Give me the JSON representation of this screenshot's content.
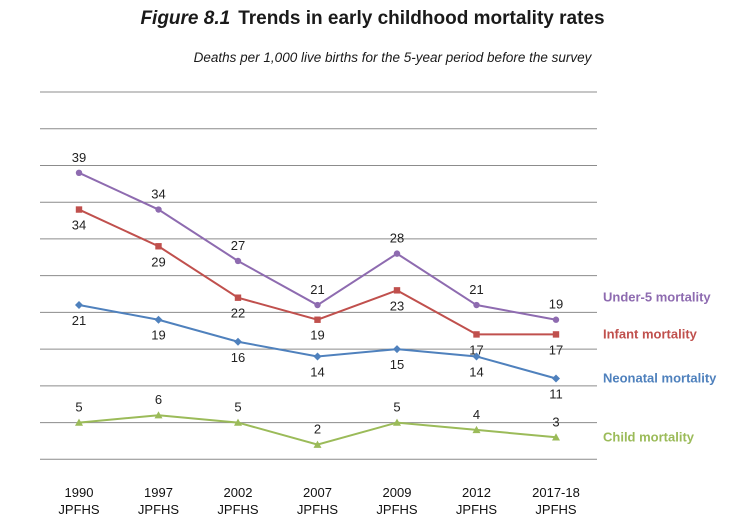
{
  "figure": {
    "number": "Figure 8.1",
    "title": "Trends in early childhood mortality rates",
    "subtitle": "Deaths per 1,000 live births for the 5-year period before the survey"
  },
  "chart_data": {
    "type": "line",
    "categories": [
      [
        "1990",
        "JPFHS"
      ],
      [
        "1997",
        "JPFHS"
      ],
      [
        "2002",
        "JPFHS"
      ],
      [
        "2007",
        "JPFHS"
      ],
      [
        "2009",
        "JPFHS"
      ],
      [
        "2012",
        "JPFHS"
      ],
      [
        "2017-18",
        "JPFHS"
      ]
    ],
    "ylim": [
      -2,
      50
    ],
    "grid": true,
    "legend": "right, end of each line",
    "series": [
      {
        "name": "Under-5 mortality",
        "color": "#8e6bb0",
        "marker": "circle",
        "values": [
          39,
          34,
          27,
          21,
          28,
          21,
          19
        ],
        "label_pos": [
          "above",
          "above",
          "above",
          "above",
          "above",
          "above",
          "above"
        ]
      },
      {
        "name": "Infant mortality",
        "color": "#c0504d",
        "marker": "square",
        "values": [
          34,
          29,
          22,
          19,
          23,
          17,
          17
        ],
        "label_pos": [
          "below",
          "below",
          "below",
          "below",
          "below",
          "below",
          "below"
        ]
      },
      {
        "name": "Neonatal mortality",
        "color": "#4f81bd",
        "marker": "diamond",
        "values": [
          21,
          19,
          16,
          14,
          15,
          14,
          11
        ],
        "label_pos": [
          "below",
          "below",
          "below",
          "below",
          "below",
          "below",
          "below"
        ]
      },
      {
        "name": "Child mortality",
        "color": "#9bbb59",
        "marker": "triangle",
        "values": [
          5,
          6,
          5,
          2,
          5,
          4,
          3
        ],
        "label_pos": [
          "above",
          "above",
          "above",
          "above",
          "above",
          "above",
          "above"
        ]
      }
    ]
  }
}
